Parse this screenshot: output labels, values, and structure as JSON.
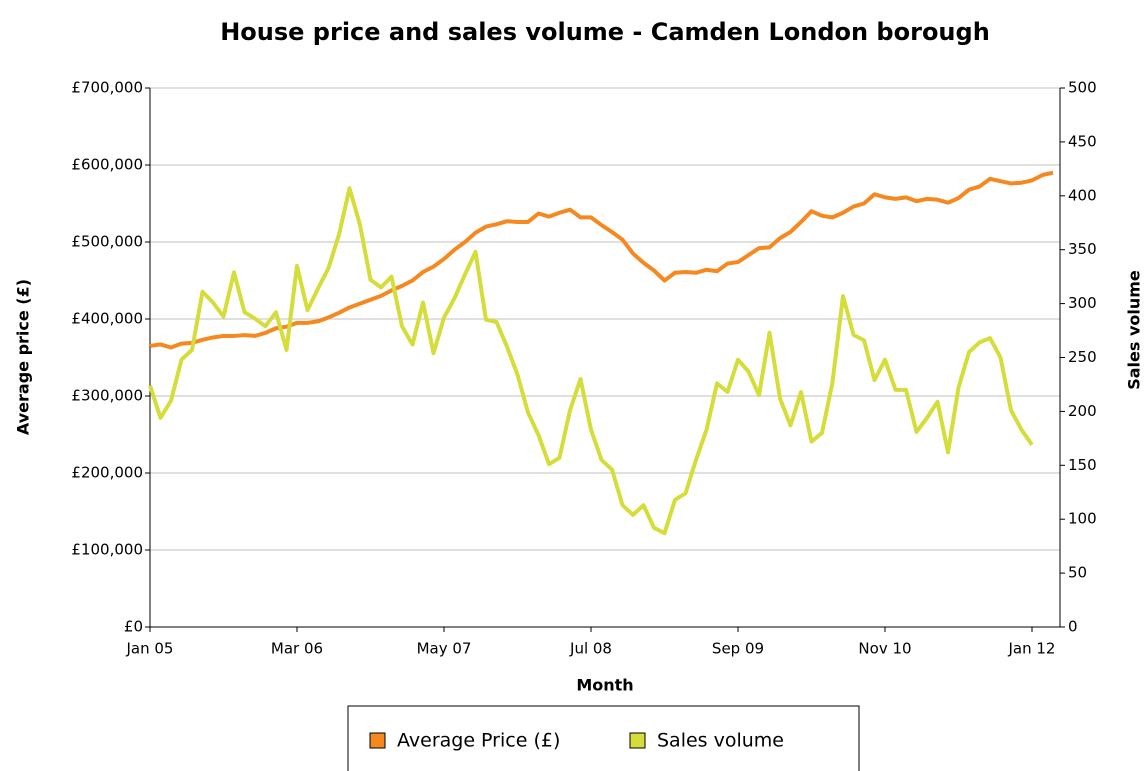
{
  "chart_data": {
    "type": "line",
    "title": "House price and sales volume - Camden London borough",
    "x_label": "Month",
    "y_label": "Average price (£)",
    "y2_label": "Sales volume",
    "categories": [
      "Jan 05",
      null,
      null,
      null,
      null,
      null,
      null,
      null,
      null,
      null,
      null,
      null,
      null,
      null,
      "Mar 06",
      null,
      null,
      null,
      null,
      null,
      null,
      null,
      null,
      null,
      null,
      null,
      null,
      null,
      "May 07",
      null,
      null,
      null,
      null,
      null,
      null,
      null,
      null,
      null,
      null,
      null,
      null,
      null,
      "Jul 08",
      null,
      null,
      null,
      null,
      null,
      null,
      null,
      null,
      null,
      null,
      null,
      null,
      null,
      "Sep 09",
      null,
      null,
      null,
      null,
      null,
      null,
      null,
      null,
      null,
      null,
      null,
      null,
      null,
      "Nov 10",
      null,
      null,
      null,
      null,
      null,
      null,
      null,
      null,
      null,
      null,
      null,
      null,
      null,
      "Jan 12",
      null,
      null
    ],
    "ylim": [
      0,
      700000
    ],
    "yticks": [
      {
        "value": 0,
        "label": "£0"
      },
      {
        "value": 100000,
        "label": "£100,000"
      },
      {
        "value": 200000,
        "label": "£200,000"
      },
      {
        "value": 300000,
        "label": "£300,000"
      },
      {
        "value": 400000,
        "label": "£400,000"
      },
      {
        "value": 500000,
        "label": "£500,000"
      },
      {
        "value": 600000,
        "label": "£600,000"
      },
      {
        "value": 700000,
        "label": "£700,000"
      }
    ],
    "y2lim": [
      0,
      500
    ],
    "y2ticks": [
      0,
      50,
      100,
      150,
      200,
      250,
      300,
      350,
      400,
      450,
      500
    ],
    "grid": true,
    "legend": "bottom",
    "series": [
      {
        "name": "Average Price (£)",
        "color": "#f5891f",
        "values": [
          365000,
          367000,
          363000,
          368000,
          369000,
          373000,
          376000,
          378000,
          378000,
          379000,
          378000,
          382000,
          388000,
          390000,
          395000,
          395000,
          397000,
          402000,
          408000,
          415000,
          420000,
          425000,
          430000,
          437000,
          443000,
          450000,
          461000,
          468000,
          478000,
          490000,
          500000,
          512000,
          520000,
          523000,
          527000,
          526000,
          526000,
          537000,
          533000,
          538000,
          542000,
          532000,
          532000,
          522000,
          513000,
          503000,
          485000,
          473000,
          463000,
          450000,
          460000,
          461000,
          460000,
          464000,
          462000,
          472000,
          474000,
          483000,
          492000,
          493000,
          505000,
          513000,
          526000,
          540000,
          534000,
          532000,
          538000,
          546000,
          550000,
          562000,
          558000,
          556000,
          558000,
          553000,
          556000,
          555000,
          551000,
          557000,
          568000,
          572000,
          582000,
          579000,
          576000,
          577000,
          580000,
          587000,
          590000
        ]
      },
      {
        "name": "Sales volume",
        "color": "#d4dd3a",
        "axis": "y2",
        "values": [
          224,
          194,
          210,
          248,
          257,
          311,
          301,
          288,
          329,
          292,
          286,
          279,
          292,
          257,
          335,
          294,
          314,
          333,
          364,
          407,
          373,
          322,
          315,
          325,
          279,
          262,
          301,
          254,
          287,
          305,
          327,
          348,
          285,
          283,
          260,
          234,
          199,
          178,
          151,
          157,
          201,
          230,
          183,
          155,
          146,
          113,
          104,
          113,
          92,
          87,
          118,
          124,
          155,
          183,
          226,
          218,
          248,
          237,
          215,
          273,
          212,
          187,
          218,
          172,
          180,
          227,
          307,
          271,
          266,
          229,
          248,
          220,
          220,
          181,
          194,
          209,
          162,
          222,
          255,
          264,
          268,
          250,
          201,
          183,
          169,
          null,
          null
        ]
      }
    ]
  }
}
